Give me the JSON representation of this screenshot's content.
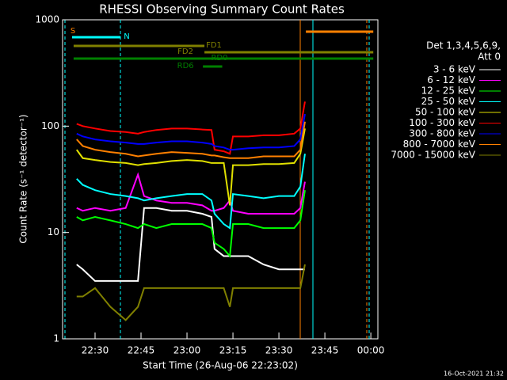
{
  "chart_data": {
    "type": "line",
    "title": "RHESSI Observing Summary Count Rates",
    "xlabel": "Start Time (26-Aug-06 22:23:02)",
    "ylabel": "Count Rate (s⁻¹ detector⁻¹)",
    "footer": "16-Oct-2021 21:32",
    "legend_header": [
      "Det 1,3,4,5,6,9,",
      "Att 0"
    ],
    "log_y": true,
    "xlim": [
      19.4,
      122.3
    ],
    "ylim": [
      1,
      1000
    ],
    "xticks": [
      {
        "value": 30,
        "label": "22:30"
      },
      {
        "value": 45,
        "label": "22:45"
      },
      {
        "value": 60,
        "label": "23:00"
      },
      {
        "value": 75,
        "label": "23:15"
      },
      {
        "value": 90,
        "label": "23:30"
      },
      {
        "value": 105,
        "label": "23:45"
      },
      {
        "value": 120,
        "label": "00:00"
      }
    ],
    "yticks": [
      1,
      10,
      100,
      1000
    ],
    "x": [
      24,
      26,
      30,
      35,
      40,
      44,
      46,
      50,
      55,
      60,
      65,
      68,
      69,
      72,
      74,
      75,
      80,
      85,
      90,
      95,
      97,
      98.5
    ],
    "series": [
      {
        "name": "3 - 6 keV",
        "color": "#ffffff",
        "values": [
          5,
          4.5,
          3.5,
          3.5,
          3.5,
          3.5,
          17,
          17,
          16,
          16,
          15,
          14,
          7,
          6,
          6,
          6,
          6,
          5,
          4.5,
          4.5,
          4.5,
          4.5
        ]
      },
      {
        "name": "6 - 12 keV",
        "color": "#ff00ff",
        "values": [
          17,
          16,
          17,
          16,
          17,
          35,
          22,
          20,
          19,
          19,
          18,
          16,
          16,
          17,
          20,
          16,
          15,
          15,
          15,
          15,
          17,
          30
        ]
      },
      {
        "name": "12 - 25 keV",
        "color": "#00ff00",
        "values": [
          14,
          13,
          14,
          13,
          12,
          11,
          12,
          11,
          12,
          12,
          12,
          11,
          8,
          7,
          6,
          12,
          12,
          11,
          11,
          11,
          13,
          25
        ]
      },
      {
        "name": "25 - 50 keV",
        "color": "#00ffff",
        "values": [
          32,
          28,
          25,
          23,
          22,
          21,
          20,
          21,
          22,
          23,
          23,
          20,
          15,
          12,
          11,
          23,
          22,
          21,
          22,
          22,
          27,
          55
        ]
      },
      {
        "name": "50 - 100 keV",
        "color": "#e0e000",
        "values": [
          60,
          50,
          48,
          46,
          45,
          43,
          44,
          45,
          47,
          48,
          47,
          45,
          45,
          45,
          18,
          43,
          43,
          44,
          44,
          45,
          55,
          95
        ]
      },
      {
        "name": "100 - 300 keV",
        "color": "#ff0000",
        "values": [
          105,
          100,
          95,
          90,
          88,
          85,
          88,
          92,
          95,
          95,
          93,
          92,
          60,
          58,
          55,
          80,
          80,
          82,
          82,
          85,
          95,
          170
        ]
      },
      {
        "name": "300 - 800 keV",
        "color": "#0000ff",
        "values": [
          85,
          80,
          75,
          72,
          70,
          68,
          68,
          70,
          72,
          72,
          70,
          68,
          65,
          63,
          60,
          60,
          62,
          63,
          63,
          65,
          75,
          130
        ]
      },
      {
        "name": "800 - 7000 keV",
        "color": "#ff8000",
        "values": [
          75,
          65,
          60,
          57,
          55,
          52,
          53,
          55,
          57,
          56,
          55,
          53,
          53,
          51,
          50,
          50,
          50,
          52,
          52,
          52,
          60,
          110
        ]
      },
      {
        "name": "7000 - 15000 keV",
        "color": "#808000",
        "values": [
          2.5,
          2.5,
          3,
          2,
          1.5,
          2,
          3,
          3,
          3,
          3,
          3,
          3,
          3,
          3,
          2,
          3,
          3,
          3,
          3,
          3,
          3,
          5
        ]
      }
    ],
    "flags": [
      {
        "name": "S",
        "color": "#ff8000",
        "x": [
          98.8,
          120.8
        ]
      },
      {
        "name": "N",
        "color": "#00ffff",
        "x": [
          22.5,
          38.3
        ]
      },
      {
        "name": "FD1",
        "color": "#808000",
        "x": [
          23,
          65.7
        ]
      },
      {
        "name": "FD2",
        "color": "#808000",
        "x": [
          65.7,
          120.8
        ]
      },
      {
        "name": "RD0",
        "color": "#008000",
        "x": [
          23,
          120.8
        ]
      },
      {
        "name": "RD6",
        "color": "#008000",
        "x": [
          65.2,
          71.5
        ]
      }
    ]
  }
}
